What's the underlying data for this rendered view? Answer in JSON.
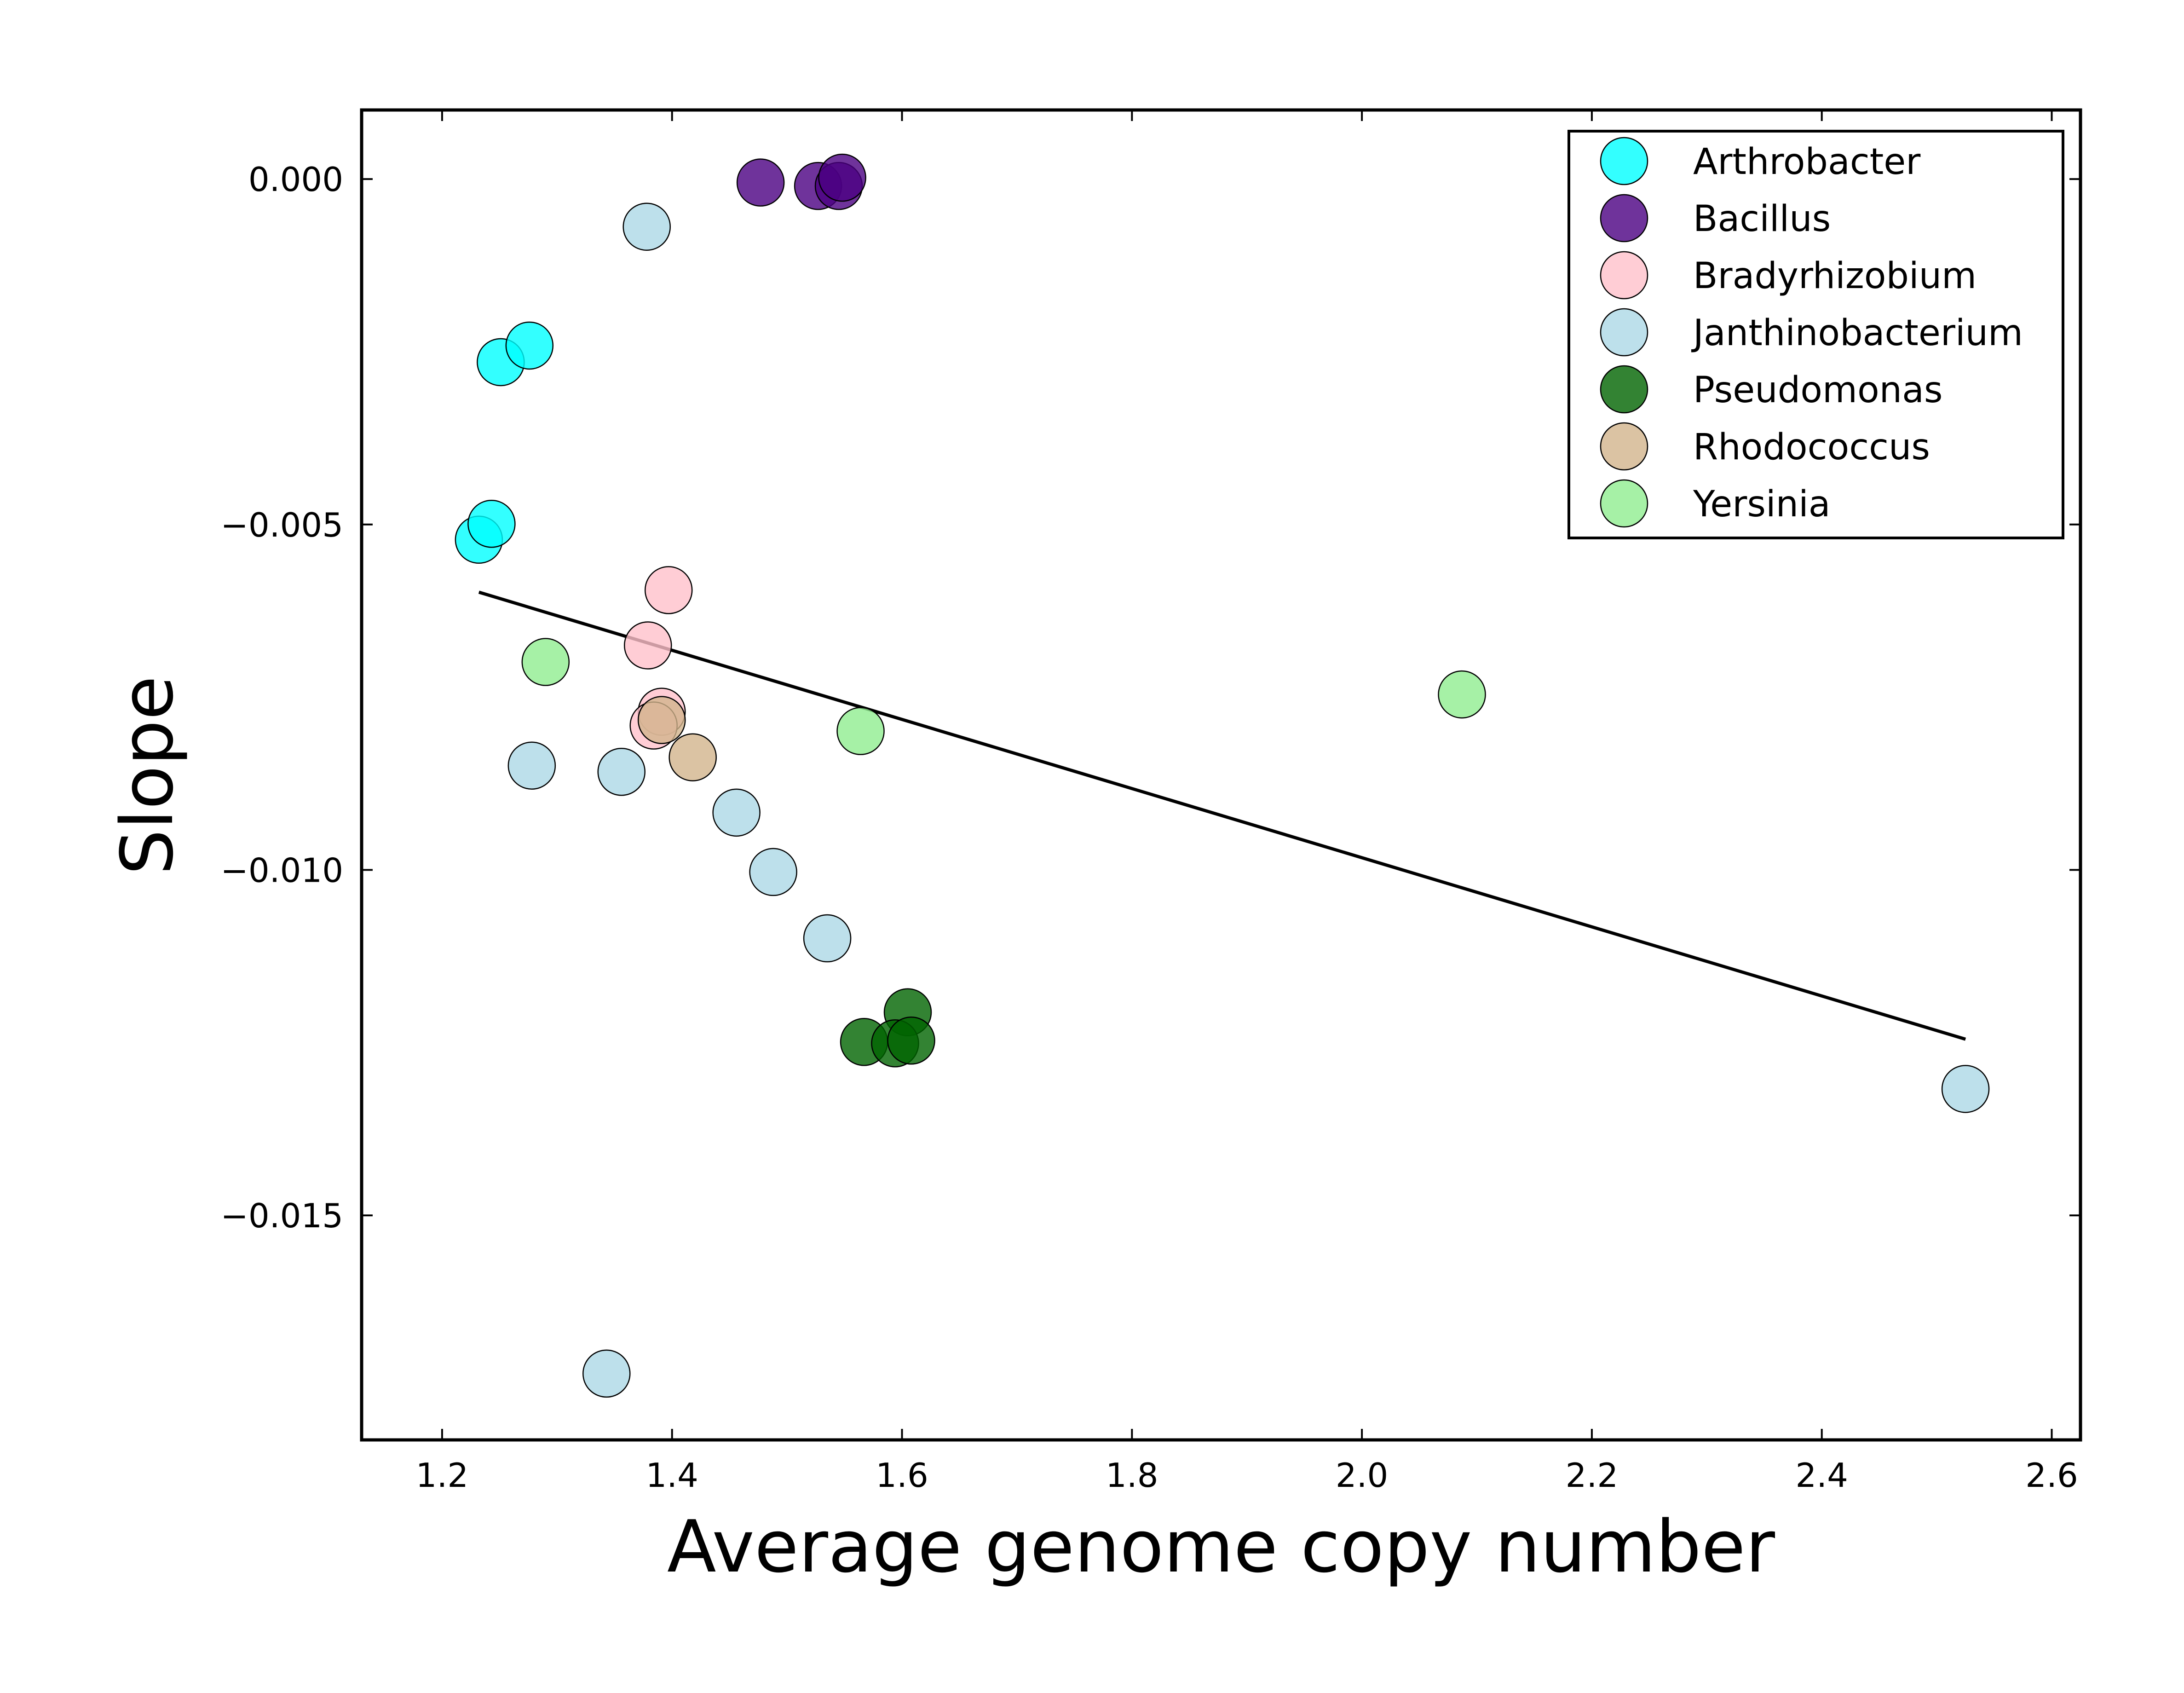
{
  "chart_data": {
    "type": "scatter",
    "xlabel": "Average genome copy number",
    "ylabel": "Slope",
    "xlim": [
      1.13,
      2.625
    ],
    "ylim": [
      -0.01825,
      0.001
    ],
    "xticks": [
      1.2,
      1.4,
      1.6,
      1.8,
      2.0,
      2.2,
      2.4,
      2.6
    ],
    "xtick_labels": [
      "1.2",
      "1.4",
      "1.6",
      "1.8",
      "2.0",
      "2.2",
      "2.4",
      "2.6"
    ],
    "yticks": [
      0.0,
      -0.005,
      -0.01,
      -0.015
    ],
    "ytick_labels": [
      "0.000",
      "−0.005",
      "−0.010",
      "−0.015"
    ],
    "grid": false,
    "legend_position": "top-right",
    "series": [
      {
        "name": "Arthrobacter",
        "color": "#00ffff",
        "points": [
          [
            1.232,
            -0.00522
          ],
          [
            1.243,
            -0.00499
          ],
          [
            1.251,
            -0.00265
          ],
          [
            1.276,
            -0.00241
          ]
        ]
      },
      {
        "name": "Bacillus",
        "color": "#4b0082",
        "points": [
          [
            1.477,
            -5e-05
          ],
          [
            1.527,
            -0.0001
          ],
          [
            1.545,
            -0.0001
          ],
          [
            1.548,
            2e-05
          ]
        ]
      },
      {
        "name": "Bradyrhizobium",
        "color": "#ffc0cb",
        "points": [
          [
            1.397,
            -0.00595
          ],
          [
            1.379,
            -0.00675
          ],
          [
            1.391,
            -0.00771
          ],
          [
            1.384,
            -0.00791
          ]
        ]
      },
      {
        "name": "Janthinobacterium",
        "color": "#add8e6",
        "points": [
          [
            1.378,
            -0.00069
          ],
          [
            1.278,
            -0.00849
          ],
          [
            1.356,
            -0.00858
          ],
          [
            1.456,
            -0.00917
          ],
          [
            1.488,
            -0.01003
          ],
          [
            1.535,
            -0.01099
          ],
          [
            1.343,
            -0.01729
          ],
          [
            2.525,
            -0.01317
          ]
        ]
      },
      {
        "name": "Pseudomonas",
        "color": "#006400",
        "points": [
          [
            1.605,
            -0.01206
          ],
          [
            1.567,
            -0.01249
          ],
          [
            1.594,
            -0.01251
          ],
          [
            1.608,
            -0.01247
          ]
        ]
      },
      {
        "name": "Rhodococcus",
        "color": "#d2b48c",
        "points": [
          [
            1.391,
            -0.00783
          ],
          [
            1.418,
            -0.00837
          ]
        ]
      },
      {
        "name": "Yersinia",
        "color": "#90ee90",
        "points": [
          [
            1.29,
            -0.00699
          ],
          [
            1.564,
            -0.00799
          ],
          [
            2.087,
            -0.00746
          ]
        ]
      }
    ],
    "trendline": {
      "color": "#000000",
      "points": [
        [
          1.232,
          -0.00598
        ],
        [
          2.525,
          -0.01245
        ]
      ]
    }
  }
}
